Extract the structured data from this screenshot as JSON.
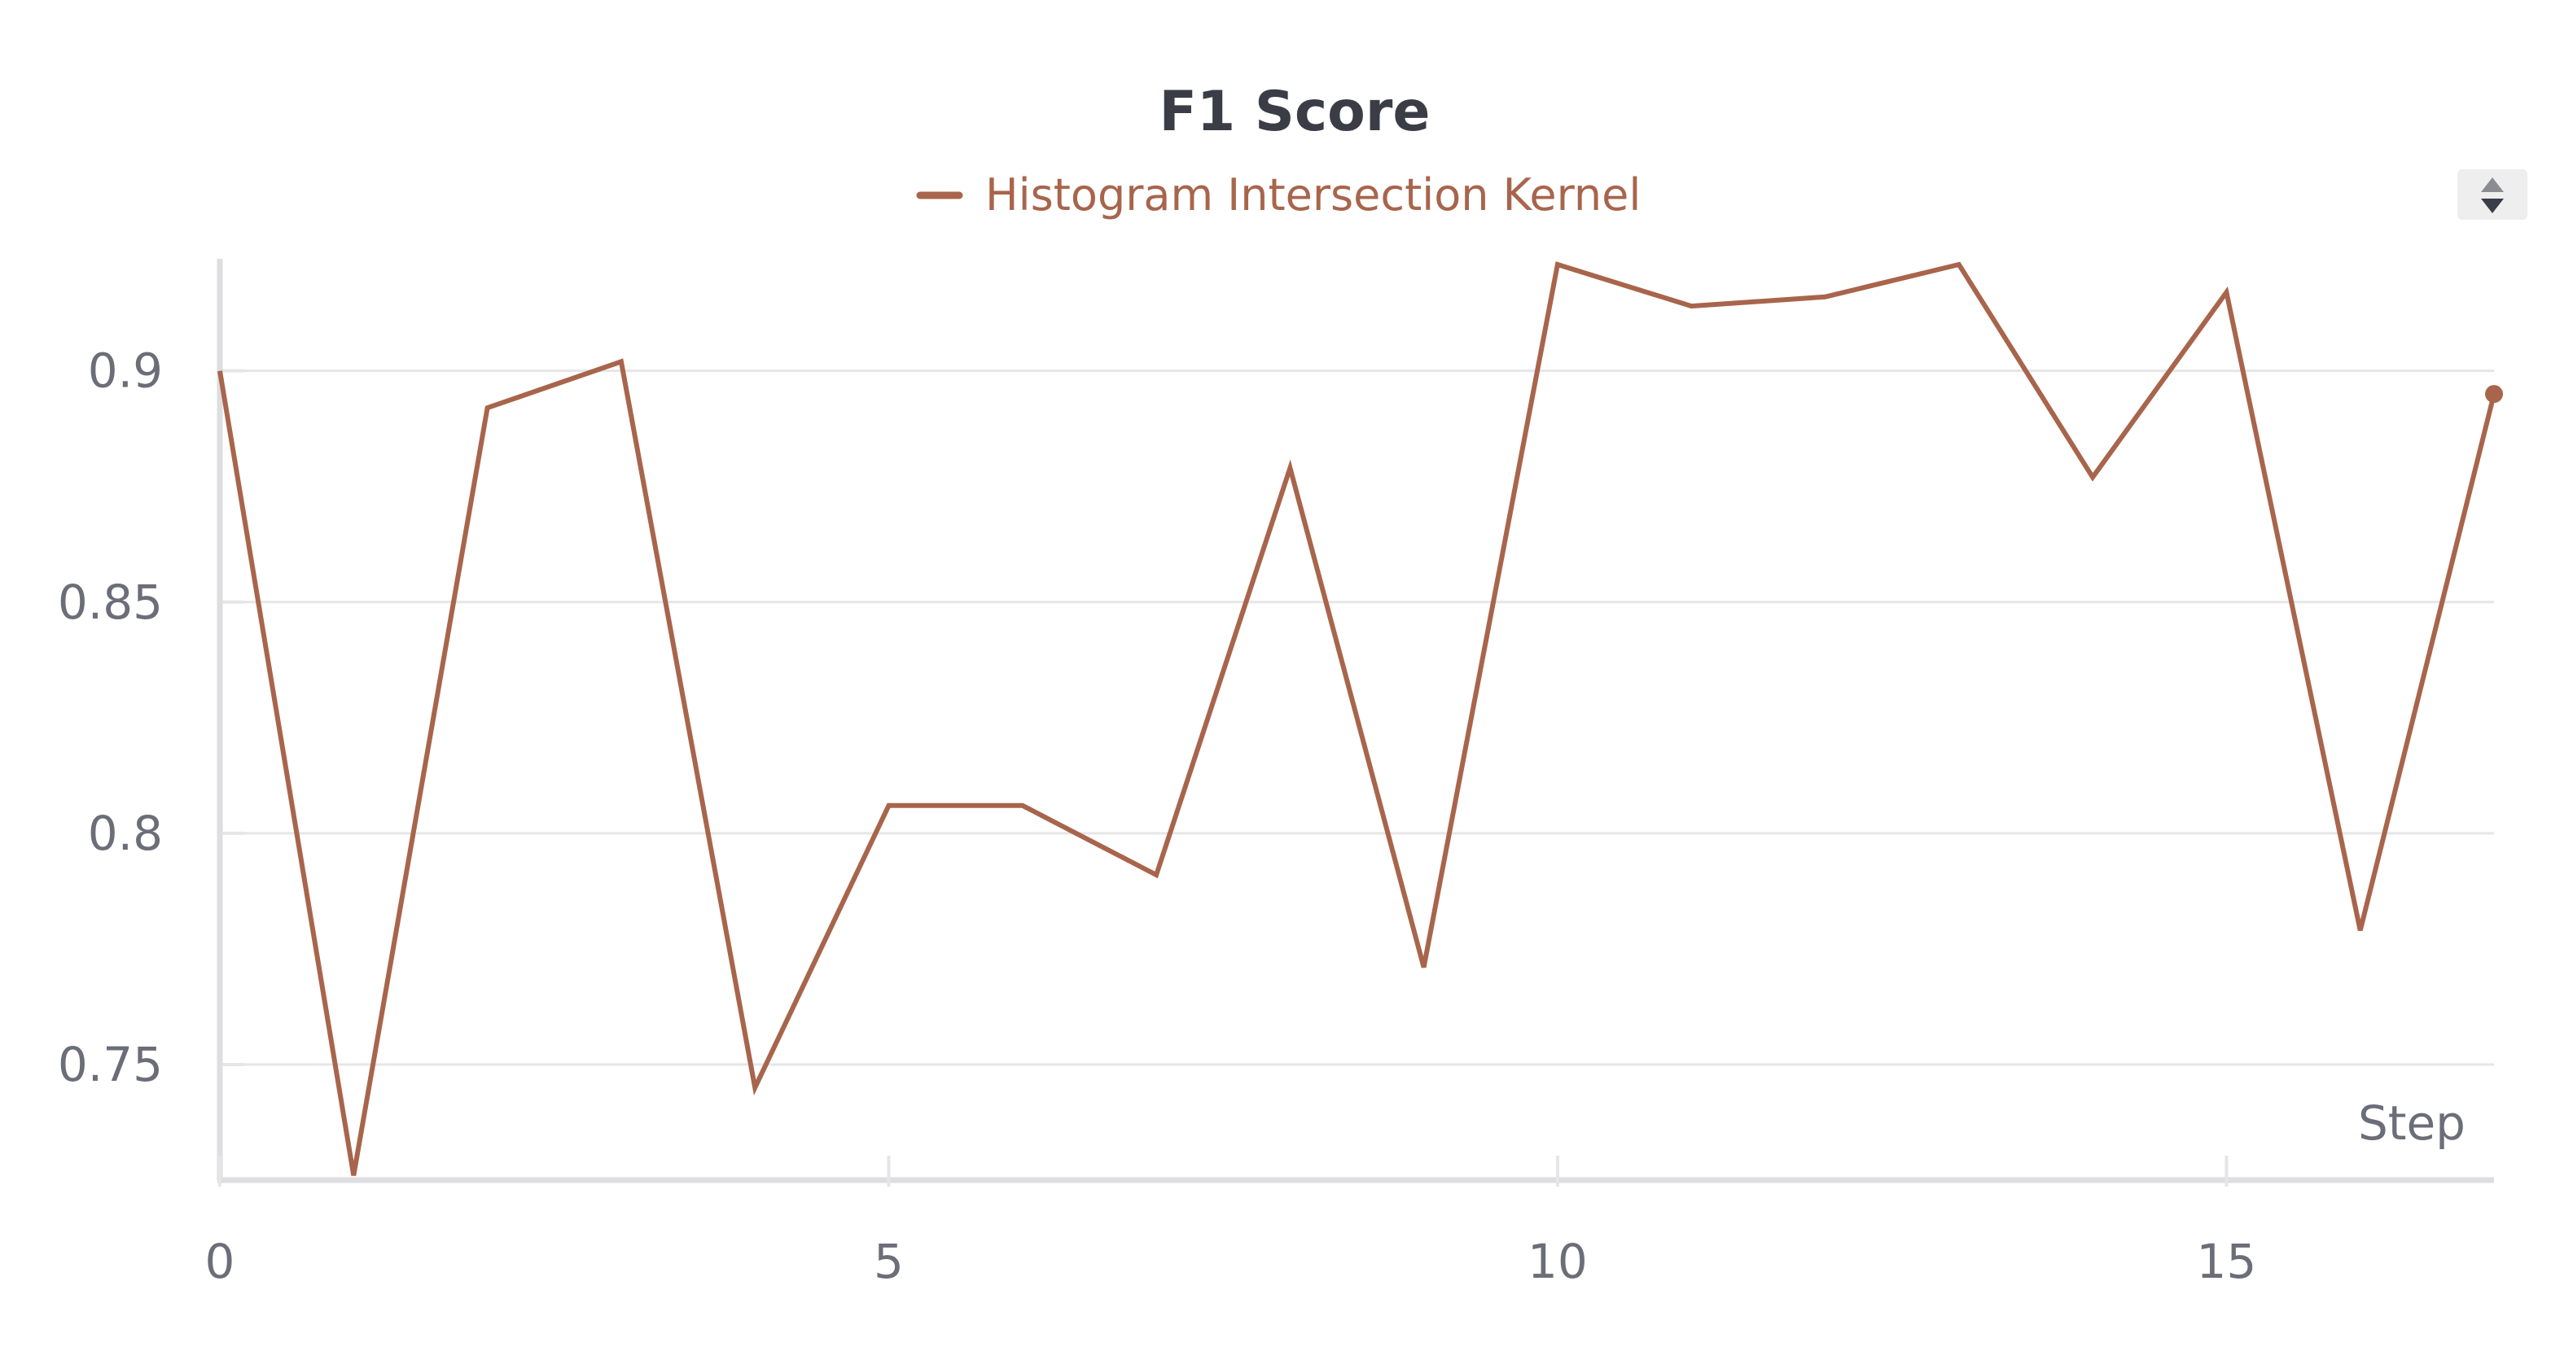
{
  "chart_data": {
    "type": "line",
    "title": "F1 Score",
    "xlabel": "Step",
    "ylabel": "",
    "xlim": [
      0,
      17
    ],
    "ylim": [
      0.725,
      0.923
    ],
    "x_ticks": [
      0,
      5,
      10,
      15
    ],
    "y_ticks": [
      0.75,
      0.8,
      0.85,
      0.9
    ],
    "grid": "horizontal",
    "legend": "top-center",
    "series": [
      {
        "name": "Histogram Intersection Kernel",
        "color": "#a8654c",
        "x": [
          0,
          1,
          2,
          3,
          4,
          5,
          6,
          7,
          8,
          9,
          10,
          11,
          12,
          13,
          14,
          15,
          16,
          17
        ],
        "y": [
          0.9,
          0.726,
          0.892,
          0.902,
          0.745,
          0.806,
          0.806,
          0.791,
          0.879,
          0.771,
          0.923,
          0.914,
          0.916,
          0.923,
          0.877,
          0.917,
          0.779,
          0.895
        ]
      }
    ]
  }
}
